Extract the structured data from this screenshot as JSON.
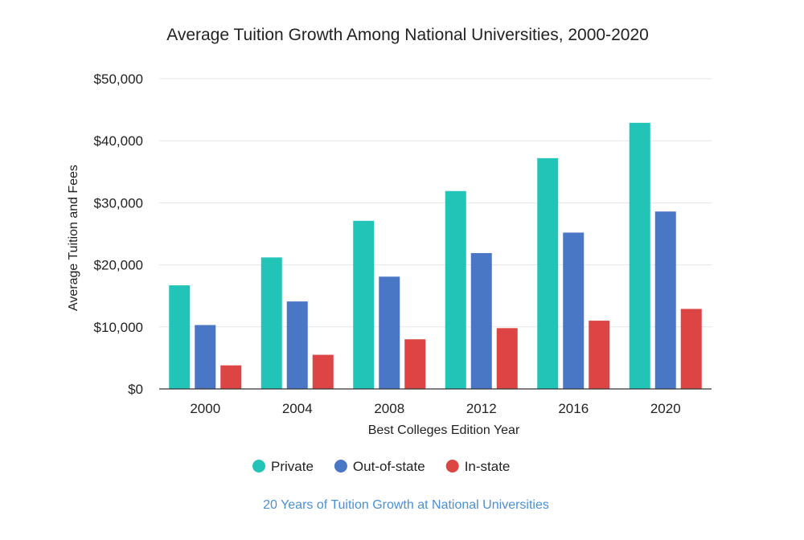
{
  "chart_data": {
    "type": "bar",
    "title": "Average Tuition Growth Among National Universities, 2000-2020",
    "xlabel": "Best Colleges Edition Year",
    "ylabel": "Average Tuition and Fees",
    "categories": [
      "2000",
      "2004",
      "2008",
      "2012",
      "2016",
      "2020"
    ],
    "series": [
      {
        "name": "Private",
        "color": "#22c4b8",
        "values": [
          16700,
          21200,
          27100,
          31900,
          37200,
          42900
        ]
      },
      {
        "name": "Out-of-state",
        "color": "#4a76c6",
        "values": [
          10300,
          14100,
          18100,
          21900,
          25200,
          28600
        ]
      },
      {
        "name": "In-state",
        "color": "#dd4444",
        "values": [
          3800,
          5500,
          8000,
          9800,
          11000,
          12900
        ]
      }
    ],
    "ylim": [
      0,
      50000
    ],
    "y_ticks": [
      "$0",
      "$10,000",
      "$20,000",
      "$30,000",
      "$40,000",
      "$50,000"
    ],
    "grid": true,
    "legend_position": "bottom"
  },
  "caption": "20 Years of Tuition Growth at National Universities"
}
